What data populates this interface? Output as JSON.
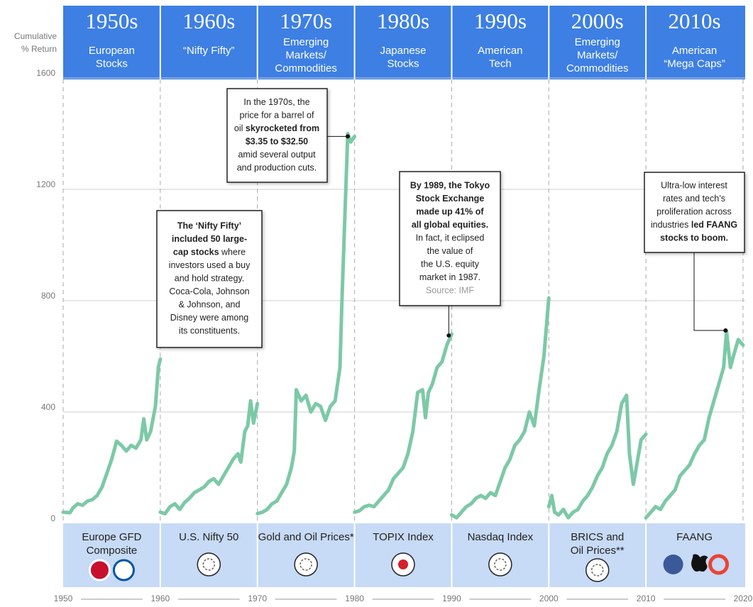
{
  "chart_data": {
    "type": "line",
    "ylabel": [
      "Cumulative",
      "% Return"
    ],
    "ylim": [
      0,
      1600
    ],
    "yticks": [
      0,
      400,
      800,
      1200,
      1600
    ],
    "xlim": [
      1950,
      2020
    ],
    "xticks": [
      1950,
      1960,
      1970,
      1980,
      1990,
      2000,
      2010,
      2020
    ],
    "grid": true,
    "series": [
      {
        "decade": "1950s",
        "theme": [
          "European",
          "Stocks"
        ],
        "name": [
          "Europe GFD",
          "Composite"
        ],
        "color": "#7cc9a7",
        "x": [
          1950,
          1950.7,
          1951,
          1951.5,
          1952,
          1952.5,
          1953,
          1953.5,
          1954,
          1954.5,
          1955,
          1955.5,
          1956,
          1956.5,
          1957,
          1957.5,
          1958,
          1958.3,
          1958.6,
          1959,
          1959.5,
          1959.8,
          1960
        ],
        "values": [
          40,
          38,
          55,
          70,
          65,
          80,
          85,
          100,
          130,
          180,
          230,
          295,
          280,
          260,
          280,
          270,
          300,
          375,
          300,
          330,
          420,
          560,
          590
        ]
      },
      {
        "decade": "1960s",
        "theme": [
          "“Nifty Fifty”"
        ],
        "name": [
          "U.S. Nifty 50"
        ],
        "color": "#7cc9a7",
        "x": [
          1960,
          1960.5,
          1961,
          1961.5,
          1962,
          1962.5,
          1963,
          1963.5,
          1964,
          1964.5,
          1965,
          1965.5,
          1966,
          1966.5,
          1967,
          1967.5,
          1968,
          1968.3,
          1968.7,
          1969,
          1969.3,
          1969.6,
          1970
        ],
        "values": [
          40,
          35,
          60,
          70,
          50,
          75,
          90,
          110,
          120,
          130,
          150,
          160,
          140,
          170,
          200,
          230,
          250,
          220,
          330,
          350,
          440,
          360,
          430
        ]
      },
      {
        "decade": "1970s",
        "theme": [
          "Emerging",
          "Markets/",
          "Commodities"
        ],
        "name": [
          "Gold and Oil Prices*"
        ],
        "color": "#7cc9a7",
        "x": [
          1970,
          1970.5,
          1971,
          1971.5,
          1972,
          1972.5,
          1973,
          1973.5,
          1973.8,
          1974,
          1974.5,
          1975,
          1975.5,
          1976,
          1976.5,
          1977,
          1977.5,
          1978,
          1978.5,
          1978.7,
          1979,
          1979.3,
          1979.6,
          1980
        ],
        "values": [
          35,
          40,
          50,
          70,
          80,
          110,
          140,
          200,
          260,
          480,
          440,
          460,
          400,
          430,
          420,
          370,
          420,
          440,
          560,
          800,
          1100,
          1400,
          1370,
          1390
        ]
      },
      {
        "decade": "1980s",
        "theme": [
          "Japanese",
          "Stocks"
        ],
        "name": [
          "TOPIX Index"
        ],
        "color": "#7cc9a7",
        "x": [
          1980,
          1980.5,
          1981,
          1981.5,
          1982,
          1982.5,
          1983,
          1983.5,
          1984,
          1984.5,
          1985,
          1985.5,
          1986,
          1986.5,
          1987,
          1987.3,
          1987.6,
          1988,
          1988.5,
          1989,
          1989.5,
          1990
        ],
        "values": [
          40,
          45,
          60,
          65,
          60,
          80,
          100,
          120,
          160,
          180,
          200,
          250,
          330,
          470,
          480,
          380,
          470,
          500,
          560,
          580,
          640,
          680
        ]
      },
      {
        "decade": "1990s",
        "theme": [
          "American",
          "Tech"
        ],
        "name": [
          "Nasdaq Index"
        ],
        "color": "#7cc9a7",
        "x": [
          1990,
          1990.5,
          1991,
          1991.5,
          1992,
          1992.5,
          1993,
          1993.5,
          1994,
          1994.5,
          1995,
          1995.5,
          1996,
          1996.5,
          1997,
          1997.5,
          1998,
          1998.5,
          1999,
          1999.5,
          2000
        ],
        "values": [
          30,
          20,
          40,
          60,
          70,
          90,
          100,
          90,
          110,
          100,
          150,
          200,
          230,
          280,
          300,
          330,
          400,
          350,
          480,
          600,
          810
        ]
      },
      {
        "decade": "2000s",
        "theme": [
          "Emerging",
          "Markets/",
          "Commodities"
        ],
        "name": [
          "BRICS and",
          "Oil Prices**"
        ],
        "color": "#7cc9a7",
        "x": [
          2000,
          2000.3,
          2000.6,
          2001,
          2001.5,
          2002,
          2002.5,
          2003,
          2003.5,
          2004,
          2004.5,
          2005,
          2005.5,
          2006,
          2006.5,
          2007,
          2007.5,
          2008,
          2008.3,
          2008.7,
          2009,
          2009.5,
          2010
        ],
        "values": [
          60,
          100,
          40,
          30,
          50,
          20,
          40,
          50,
          80,
          100,
          130,
          170,
          200,
          250,
          280,
          330,
          430,
          460,
          250,
          140,
          200,
          300,
          320
        ]
      },
      {
        "decade": "2010s",
        "theme": [
          "American",
          "“Mega Caps”"
        ],
        "name": [
          "FAANG"
        ],
        "color": "#7cc9a7",
        "x": [
          2010,
          2010.5,
          2011,
          2011.5,
          2012,
          2012.5,
          2013,
          2013.5,
          2014,
          2014.5,
          2015,
          2015.5,
          2016,
          2016.5,
          2017,
          2017.5,
          2018,
          2018.3,
          2018.7,
          2019,
          2019.5,
          2020
        ],
        "values": [
          20,
          40,
          60,
          50,
          80,
          100,
          120,
          170,
          190,
          210,
          250,
          280,
          300,
          380,
          440,
          500,
          560,
          690,
          560,
          600,
          660,
          640
        ]
      }
    ],
    "annotations": [
      {
        "lines": [
          [
            {
              "text": "In the 1970s, the",
              "bold": false
            }
          ],
          [
            {
              "text": "price for a barrel of",
              "bold": false
            }
          ],
          [
            {
              "text": "oil ",
              "bold": false
            },
            {
              "text": "skyrocketed from",
              "bold": true
            }
          ],
          [
            {
              "text": "$3.35 to $32.50",
              "bold": true
            }
          ],
          [
            {
              "text": "amid several output",
              "bold": false
            }
          ],
          [
            {
              "text": "and production cuts.",
              "bold": false
            }
          ]
        ],
        "point": {
          "x": 1979.3,
          "y": 1390
        }
      },
      {
        "lines": [
          [
            {
              "text": "The ‘Nifty Fifty’",
              "bold": true
            }
          ],
          [
            {
              "text": "included 50 large-",
              "bold": true
            }
          ],
          [
            {
              "text": "cap stocks",
              "bold": true
            },
            {
              "text": " where",
              "bold": false
            }
          ],
          [
            {
              "text": "investors used a buy",
              "bold": false
            }
          ],
          [
            {
              "text": "and hold strategy.",
              "bold": false
            }
          ],
          [
            {
              "text": "Coca-Cola, Johnson",
              "bold": false
            }
          ],
          [
            {
              "text": "& Johnson, and",
              "bold": false
            }
          ],
          [
            {
              "text": "Disney were among",
              "bold": false
            }
          ],
          [
            {
              "text": "its constituents.",
              "bold": false
            }
          ]
        ]
      },
      {
        "lines": [
          [
            {
              "text": "By 1989, the Tokyo",
              "bold": true
            }
          ],
          [
            {
              "text": "Stock Exchange",
              "bold": true
            }
          ],
          [
            {
              "text": "made up 41% of",
              "bold": true
            }
          ],
          [
            {
              "text": "all global equities.",
              "bold": true
            }
          ],
          [
            {
              "text": "In fact, it eclipsed",
              "bold": false
            }
          ],
          [
            {
              "text": "the value of",
              "bold": false
            }
          ],
          [
            {
              "text": "the U.S. equity",
              "bold": false
            }
          ],
          [
            {
              "text": "market in 1987.",
              "bold": false
            }
          ],
          [
            {
              "text": "Source: IMF",
              "bold": false,
              "color": "#999"
            }
          ]
        ],
        "point": {
          "x": 1989.7,
          "y": 675
        }
      },
      {
        "lines": [
          [
            {
              "text": "Ultra-low interest",
              "bold": false
            }
          ],
          [
            {
              "text": "rates and tech’s",
              "bold": false
            }
          ],
          [
            {
              "text": "proliferation across",
              "bold": false
            }
          ],
          [
            {
              "text": "industries ",
              "bold": false
            },
            {
              "text": "led FAANG",
              "bold": true
            }
          ],
          [
            {
              "text": "stocks to boom.",
              "bold": true
            }
          ]
        ],
        "point": {
          "x": 2018.2,
          "y": 693
        }
      }
    ]
  }
}
